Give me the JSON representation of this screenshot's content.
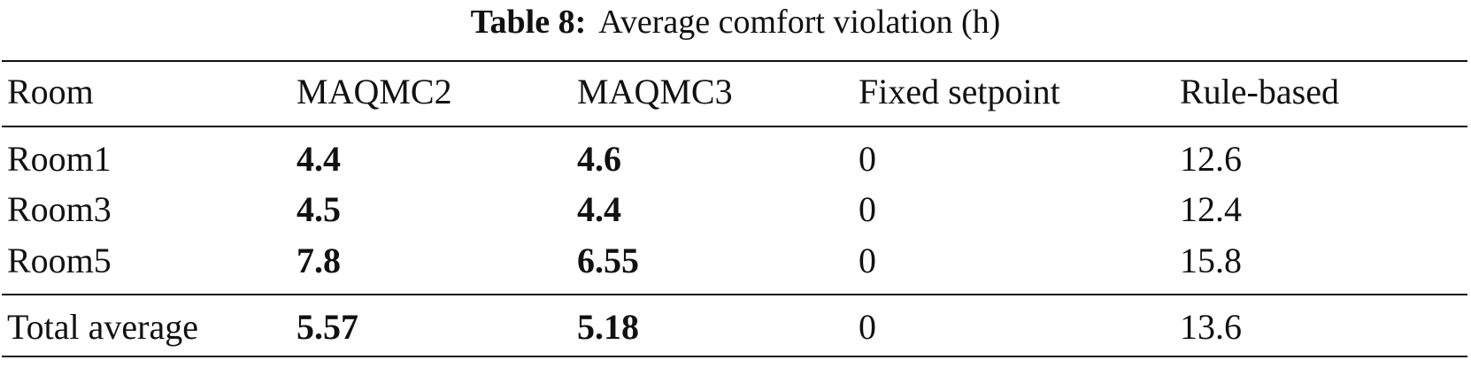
{
  "caption": {
    "label": "Table 8:",
    "text": "Average comfort violation (h)"
  },
  "table": {
    "header": [
      "Room",
      "MAQMC2",
      "MAQMC3",
      "Fixed setpoint",
      "Rule-based"
    ],
    "rows": [
      [
        "Room1",
        "4.4",
        "4.6",
        "0",
        "12.6"
      ],
      [
        "Room3",
        "4.5",
        "4.4",
        "0",
        "12.4"
      ],
      [
        "Room5",
        "7.8",
        "6.55",
        "0",
        "15.8"
      ]
    ],
    "footer": [
      "Total average",
      "5.57",
      "5.18",
      "0",
      "13.6"
    ]
  }
}
